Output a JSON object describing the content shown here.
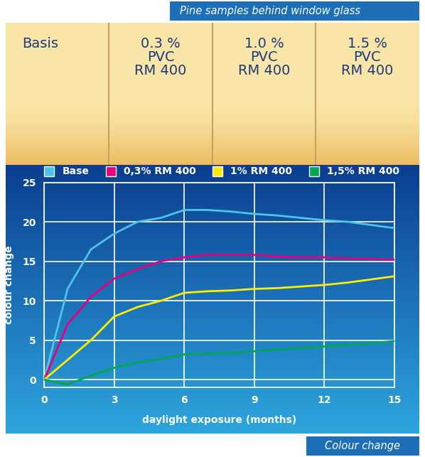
{
  "header": {
    "title": "Pine samples behind window glass"
  },
  "panel": {
    "labels": [
      "Basis",
      "0.3 %\nPVC\nRM 400",
      "1.0 %\nPVC\nRM 400",
      "1.5 %\nPVC\nRM 400"
    ]
  },
  "chart_data": {
    "type": "line",
    "x_label": "daylight exposure (months)",
    "y_label": "colour change",
    "x": [
      0,
      1,
      2,
      3,
      4,
      5,
      6,
      7,
      8,
      9,
      10,
      11,
      12,
      13,
      14,
      15
    ],
    "series": [
      {
        "name": "Base",
        "color": "#4fc3e8",
        "values": [
          0,
          11.5,
          16.5,
          18.5,
          20,
          20.5,
          21.5,
          21.5,
          21.3,
          21,
          20.8,
          20.5,
          20.2,
          20,
          19.6,
          19.2
        ]
      },
      {
        "name": "0,3% RM 400",
        "color": "#e6007e",
        "values": [
          0,
          7,
          10.5,
          12.8,
          14,
          15,
          15.5,
          15.8,
          15.8,
          15.8,
          15.6,
          15.5,
          15.5,
          15.4,
          15.3,
          15.2
        ]
      },
      {
        "name": "1% RM 400",
        "color": "#ffed00",
        "values": [
          0,
          2.5,
          5,
          8,
          9.2,
          10,
          11,
          11.2,
          11.3,
          11.5,
          11.6,
          11.8,
          12,
          12.3,
          12.7,
          13.1
        ]
      },
      {
        "name": "1,5% RM 400",
        "color": "#00a650",
        "values": [
          0,
          -0.6,
          0.5,
          1.5,
          2.2,
          2.6,
          3.2,
          3.3,
          3.4,
          3.6,
          3.8,
          4.0,
          4.2,
          4.4,
          4.6,
          4.9
        ]
      }
    ],
    "xlim": [
      0,
      15
    ],
    "xticks": [
      0,
      3,
      6,
      9,
      12,
      15
    ],
    "ylim": [
      -1,
      25
    ],
    "yticks": [
      0,
      5,
      10,
      15,
      20,
      25
    ],
    "grid": true,
    "legend": "upper center"
  },
  "footer": {
    "caption": "Colour change"
  }
}
